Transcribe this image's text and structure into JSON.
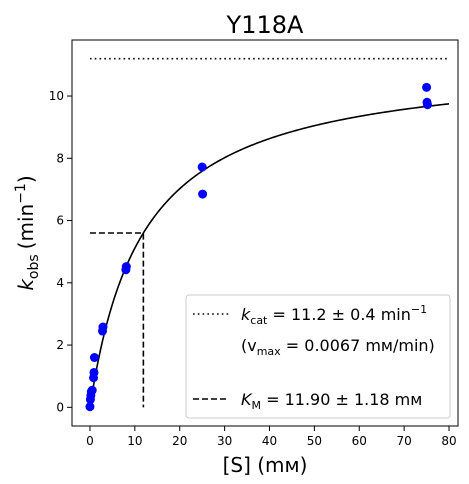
{
  "chart_data": {
    "type": "scatter",
    "title": "Y118A",
    "xlabel": "[S] (mм)",
    "ylabel_main": "k",
    "ylabel_sub": "obs",
    "ylabel_unit": "(min",
    "ylabel_exp": "−1",
    "ylabel_close": ")",
    "xlim": [
      -4,
      82
    ],
    "ylim": [
      -0.6,
      11.8
    ],
    "xticks": [
      0,
      10,
      20,
      30,
      40,
      50,
      60,
      70,
      80
    ],
    "yticks": [
      0,
      2,
      4,
      6,
      8,
      10
    ],
    "grid": false,
    "legend_placement": "bottom-right",
    "points": [
      {
        "x": 0,
        "y": 0.02
      },
      {
        "x": 0.1,
        "y": 0.25
      },
      {
        "x": 0.2,
        "y": 0.38
      },
      {
        "x": 0.3,
        "y": 0.5
      },
      {
        "x": 0.5,
        "y": 0.55
      },
      {
        "x": 0.8,
        "y": 0.95
      },
      {
        "x": 0.9,
        "y": 1.12
      },
      {
        "x": 1.0,
        "y": 1.6
      },
      {
        "x": 2.8,
        "y": 2.45
      },
      {
        "x": 2.9,
        "y": 2.58
      },
      {
        "x": 8.0,
        "y": 4.42
      },
      {
        "x": 8.1,
        "y": 4.52
      },
      {
        "x": 25,
        "y": 7.72
      },
      {
        "x": 25.1,
        "y": 6.85
      },
      {
        "x": 75,
        "y": 10.28
      },
      {
        "x": 75.1,
        "y": 9.8
      },
      {
        "x": 75.2,
        "y": 9.72
      }
    ],
    "point_color": "#0000ff",
    "fit": {
      "kcat": 11.2,
      "km": 11.9,
      "x_max": 80
    },
    "kcat_line": {
      "y": 11.2,
      "x_start": 0,
      "x_end": 80
    },
    "km_lines": {
      "km": 11.9,
      "half_v": 5.6
    },
    "legend": {
      "kcat_sym": "k",
      "kcat_sub": "cat",
      "kcat_value": " = 11.2 ± 0.4 min",
      "kcat_exp": "−1",
      "vmax_open": "(v",
      "vmax_sub": "max",
      "vmax_value": " = 0.0067 mм/min)",
      "km_sym": "K",
      "km_sub": "M",
      "km_value": " = 11.90 ± 1.18 mм"
    }
  }
}
